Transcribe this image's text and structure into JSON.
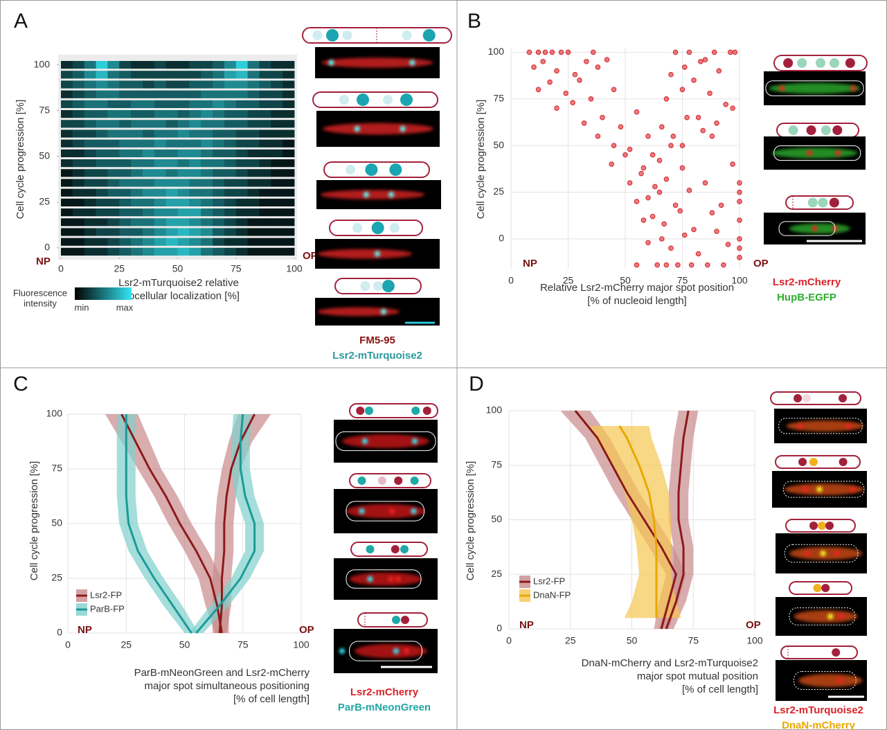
{
  "chart_data": [
    {
      "type": "heatmap",
      "panel": "A",
      "np_label": "NP",
      "op_label": "OP",
      "ylabel": "Cell cycle progression [%]",
      "xlabel": [
        "Lsr2-mTurquoise2 relative",
        "subcellular localization [%]"
      ],
      "xlim": [
        0,
        100
      ],
      "xticks": [
        0,
        25,
        50,
        75,
        100
      ],
      "ylim": [
        -5,
        102.5
      ],
      "yticks": [
        0,
        25,
        50,
        75,
        100
      ],
      "colorbar_label": [
        "Fluorescence",
        "intensity"
      ],
      "colorbar_min": "min",
      "colorbar_max": "max",
      "colors": [
        "#000000",
        "#33e6f2"
      ],
      "clim": [
        0,
        1
      ],
      "stain_labels": [
        {
          "text": "FM5-95",
          "color": "#8b1010"
        },
        {
          "text": "Lsr2-mTurquoise2",
          "color": "#2a9a9c"
        }
      ],
      "rows": [
        [
          0.2,
          0.3,
          0.5,
          0.9,
          0.6,
          0.3,
          0.2,
          0.2,
          0.3,
          0.2,
          0.2,
          0.3,
          0.3,
          0.4,
          0.6,
          0.9,
          0.5,
          0.3,
          0.2,
          0.2
        ],
        [
          0.3,
          0.4,
          0.6,
          0.8,
          0.5,
          0.4,
          0.3,
          0.3,
          0.3,
          0.3,
          0.3,
          0.3,
          0.4,
          0.5,
          0.7,
          0.8,
          0.5,
          0.3,
          0.3,
          0.2
        ],
        [
          0.3,
          0.4,
          0.5,
          0.6,
          0.5,
          0.4,
          0.4,
          0.3,
          0.4,
          0.3,
          0.3,
          0.4,
          0.4,
          0.5,
          0.6,
          0.6,
          0.5,
          0.4,
          0.3,
          0.2
        ],
        [
          0.2,
          0.3,
          0.4,
          0.5,
          0.5,
          0.4,
          0.4,
          0.4,
          0.4,
          0.4,
          0.4,
          0.4,
          0.5,
          0.5,
          0.5,
          0.5,
          0.4,
          0.3,
          0.3,
          0.2
        ],
        [
          0.3,
          0.4,
          0.5,
          0.5,
          0.4,
          0.4,
          0.5,
          0.5,
          0.4,
          0.4,
          0.4,
          0.5,
          0.5,
          0.6,
          0.5,
          0.4,
          0.4,
          0.3,
          0.3,
          0.2
        ],
        [
          0.2,
          0.3,
          0.4,
          0.4,
          0.5,
          0.5,
          0.4,
          0.4,
          0.5,
          0.5,
          0.4,
          0.5,
          0.6,
          0.5,
          0.4,
          0.4,
          0.3,
          0.3,
          0.2,
          0.2
        ],
        [
          0.3,
          0.3,
          0.4,
          0.5,
          0.5,
          0.4,
          0.5,
          0.5,
          0.5,
          0.4,
          0.5,
          0.6,
          0.5,
          0.5,
          0.4,
          0.4,
          0.3,
          0.3,
          0.2,
          0.2
        ],
        [
          0.2,
          0.3,
          0.3,
          0.4,
          0.5,
          0.5,
          0.5,
          0.4,
          0.5,
          0.5,
          0.6,
          0.5,
          0.5,
          0.4,
          0.4,
          0.3,
          0.3,
          0.2,
          0.2,
          0.2
        ],
        [
          0.2,
          0.3,
          0.4,
          0.4,
          0.4,
          0.5,
          0.5,
          0.5,
          0.6,
          0.5,
          0.5,
          0.5,
          0.6,
          0.5,
          0.4,
          0.3,
          0.3,
          0.2,
          0.2,
          0.1
        ],
        [
          0.2,
          0.2,
          0.3,
          0.4,
          0.4,
          0.5,
          0.5,
          0.6,
          0.5,
          0.5,
          0.6,
          0.6,
          0.5,
          0.4,
          0.4,
          0.3,
          0.2,
          0.2,
          0.2,
          0.1
        ],
        [
          0.2,
          0.3,
          0.3,
          0.4,
          0.4,
          0.4,
          0.5,
          0.5,
          0.6,
          0.6,
          0.5,
          0.6,
          0.5,
          0.5,
          0.4,
          0.3,
          0.3,
          0.2,
          0.1,
          0.1
        ],
        [
          0.1,
          0.2,
          0.3,
          0.3,
          0.4,
          0.4,
          0.5,
          0.6,
          0.6,
          0.5,
          0.6,
          0.6,
          0.5,
          0.4,
          0.4,
          0.3,
          0.2,
          0.2,
          0.1,
          0.1
        ],
        [
          0.1,
          0.2,
          0.3,
          0.3,
          0.4,
          0.5,
          0.5,
          0.5,
          0.6,
          0.6,
          0.6,
          0.5,
          0.5,
          0.4,
          0.3,
          0.3,
          0.2,
          0.2,
          0.1,
          0.1
        ],
        [
          0.1,
          0.2,
          0.2,
          0.3,
          0.4,
          0.4,
          0.5,
          0.6,
          0.6,
          0.7,
          0.6,
          0.5,
          0.5,
          0.4,
          0.3,
          0.3,
          0.2,
          0.1,
          0.1,
          0.1
        ],
        [
          0.1,
          0.1,
          0.2,
          0.3,
          0.3,
          0.4,
          0.5,
          0.5,
          0.6,
          0.7,
          0.7,
          0.6,
          0.5,
          0.4,
          0.3,
          0.2,
          0.2,
          0.1,
          0.1,
          0.1
        ],
        [
          0.1,
          0.2,
          0.2,
          0.3,
          0.3,
          0.4,
          0.4,
          0.5,
          0.6,
          0.6,
          0.7,
          0.7,
          0.5,
          0.4,
          0.3,
          0.2,
          0.2,
          0.1,
          0.1,
          0.1
        ],
        [
          0.1,
          0.1,
          0.2,
          0.2,
          0.3,
          0.4,
          0.5,
          0.5,
          0.6,
          0.7,
          0.7,
          0.6,
          0.5,
          0.4,
          0.3,
          0.2,
          0.1,
          0.1,
          0.1,
          0.1
        ],
        [
          0.1,
          0.1,
          0.2,
          0.3,
          0.3,
          0.4,
          0.4,
          0.5,
          0.6,
          0.7,
          0.8,
          0.7,
          0.6,
          0.4,
          0.3,
          0.2,
          0.1,
          0.1,
          0.1,
          0.1
        ],
        [
          0.1,
          0.1,
          0.2,
          0.2,
          0.3,
          0.4,
          0.5,
          0.6,
          0.7,
          0.8,
          0.7,
          0.6,
          0.5,
          0.3,
          0.2,
          0.2,
          0.1,
          0.1,
          0.1,
          0.1
        ],
        [
          0.1,
          0.1,
          0.2,
          0.2,
          0.3,
          0.4,
          0.5,
          0.6,
          0.7,
          0.7,
          0.8,
          0.7,
          0.5,
          0.4,
          0.3,
          0.2,
          0.1,
          0.1,
          0.1,
          0.1
        ]
      ]
    },
    {
      "type": "scatter",
      "panel": "B",
      "np_label": "NP",
      "op_label": "OP",
      "ylabel": "Cell cycle progression [%]",
      "xlabel": [
        "Relative Lsr2-mCherry major spot position",
        "[% of nucleoid length]"
      ],
      "xlim": [
        0,
        100
      ],
      "xticks": [
        0,
        25,
        50,
        75,
        100
      ],
      "ylim": [
        -16,
        102
      ],
      "yticks": [
        0,
        25,
        50,
        75,
        100
      ],
      "grid": true,
      "color": "#d9232a",
      "stain_labels": [
        {
          "text": "Lsr2-mCherry",
          "color": "#d9232a"
        },
        {
          "text": "HupB-EGFP",
          "color": "#2fae2f"
        }
      ],
      "x": [
        8,
        12,
        15,
        18,
        22,
        25,
        10,
        14,
        20,
        28,
        33,
        36,
        12,
        17,
        24,
        30,
        38,
        42,
        20,
        27,
        35,
        45,
        32,
        40,
        48,
        55,
        38,
        45,
        52,
        60,
        44,
        50,
        58,
        65,
        70,
        52,
        57,
        63,
        68,
        75,
        55,
        60,
        65,
        72,
        78,
        85,
        58,
        62,
        67,
        74,
        80,
        88,
        92,
        60,
        66,
        70,
        76,
        82,
        90,
        95,
        64,
        68,
        73,
        79,
        86,
        93,
        66,
        71,
        77,
        84,
        90,
        97,
        68,
        75,
        80,
        87,
        94,
        70,
        76,
        83,
        89,
        96,
        72,
        78,
        85,
        91,
        98,
        100,
        100,
        100,
        100,
        100,
        100,
        100,
        55,
        62,
        75,
        82,
        88,
        97
      ],
      "values": [
        100,
        100,
        100,
        100,
        100,
        100,
        92,
        95,
        90,
        88,
        95,
        100,
        80,
        84,
        78,
        85,
        92,
        96,
        70,
        73,
        75,
        80,
        62,
        65,
        60,
        68,
        55,
        50,
        48,
        55,
        40,
        45,
        38,
        42,
        50,
        30,
        35,
        28,
        32,
        38,
        20,
        22,
        25,
        18,
        26,
        30,
        10,
        12,
        8,
        15,
        5,
        14,
        18,
        -2,
        0,
        -5,
        2,
        -8,
        4,
        -3,
        -14,
        -14,
        -14,
        -14,
        -14,
        -14,
        60,
        55,
        65,
        58,
        62,
        70,
        75,
        80,
        85,
        78,
        72,
        88,
        92,
        95,
        100,
        100,
        100,
        100,
        96,
        90,
        100,
        20,
        10,
        0,
        -5,
        -10,
        25,
        30,
        -14,
        45,
        50,
        65,
        55,
        40
      ]
    },
    {
      "type": "line",
      "panel": "C",
      "np_label": "NP",
      "op_label": "OP",
      "ylabel": "Cell cycle progression [%]",
      "xlabel": [
        "ParB-mNeonGreen and Lsr2-mCherry",
        "major spot simultaneous positioning",
        "[% of cell length]"
      ],
      "xlim": [
        0,
        100
      ],
      "xticks": [
        0,
        25,
        50,
        75,
        100
      ],
      "ylim": [
        0,
        100
      ],
      "yticks": [
        0,
        25,
        50,
        75,
        100
      ],
      "grid": true,
      "legend": "lower left",
      "stain_labels": [
        {
          "text": "Lsr2-mCherry",
          "color": "#d9232a"
        },
        {
          "text": "ParB-mNeonGreen",
          "color": "#1fa8a6"
        }
      ],
      "series": [
        {
          "name": "Lsr2-FP",
          "color": "#8b1a1a",
          "band_color": "#c98a8c",
          "branches": [
            {
              "y": [
                0,
                12.5,
                25,
                37.5,
                50,
                62.5,
                75,
                87.5,
                100
              ],
              "values": [
                66,
                64,
                61,
                55,
                48,
                42,
                35,
                29,
                23
              ],
              "lower": [
                63,
                59,
                56,
                50,
                43,
                37,
                30,
                23,
                16
              ],
              "upper": [
                69,
                69,
                66,
                60,
                53,
                47,
                40,
                35,
                30
              ]
            },
            {
              "y": [
                0,
                12.5,
                25,
                37.5,
                50,
                62.5,
                75,
                87.5,
                100
              ],
              "values": [
                65,
                66,
                66,
                67,
                67,
                68,
                70,
                74,
                80
              ],
              "lower": [
                62,
                62,
                62,
                63,
                63,
                64,
                66,
                69,
                73
              ],
              "upper": [
                68,
                70,
                70,
                71,
                71,
                72,
                74,
                79,
                87
              ]
            }
          ]
        },
        {
          "name": "ParB-FP",
          "color": "#1b9a9a",
          "band_color": "#7fd0cc",
          "branches": [
            {
              "y": [
                0,
                12.5,
                25,
                37.5,
                50,
                62.5,
                75,
                87.5,
                100
              ],
              "values": [
                53,
                45,
                37,
                30,
                26,
                25,
                25,
                25,
                25
              ],
              "lower": [
                50,
                41,
                33,
                26,
                22,
                21,
                21,
                21,
                21
              ],
              "upper": [
                56,
                49,
                41,
                34,
                30,
                29,
                29,
                29,
                29
              ]
            },
            {
              "y": [
                0,
                12.5,
                25,
                37.5,
                50,
                62.5,
                75,
                87.5,
                100
              ],
              "values": [
                55,
                65,
                74,
                80,
                80,
                76,
                74,
                74,
                75
              ],
              "lower": [
                52,
                61,
                70,
                76,
                76,
                72,
                70,
                70,
                71
              ],
              "upper": [
                58,
                69,
                78,
                84,
                84,
                80,
                78,
                78,
                79
              ]
            }
          ]
        }
      ]
    },
    {
      "type": "line",
      "panel": "D",
      "np_label": "NP",
      "op_label": "OP",
      "ylabel": "Cell cycle progression [%]",
      "xlabel": [
        "DnaN-mCherry and Lsr2-mTurquoise2",
        "major spot mutual position",
        "[% of cell length]"
      ],
      "xlim": [
        0,
        100
      ],
      "xticks": [
        0,
        25,
        50,
        75,
        100
      ],
      "ylim": [
        0,
        100
      ],
      "yticks": [
        0,
        25,
        50,
        75,
        100
      ],
      "grid": true,
      "legend": "lower left",
      "stain_labels": [
        {
          "text": "Lsr2-mTurquoise2",
          "color": "#d9232a"
        },
        {
          "text": "DnaN-mCherry",
          "color": "#e8a800"
        }
      ],
      "series": [
        {
          "name": "Lsr2-FP",
          "color": "#8b1a1a",
          "band_color": "#c98a8c",
          "branches": [
            {
              "y": [
                0,
                12.5,
                25,
                37.5,
                50,
                62.5,
                75,
                87.5,
                100
              ],
              "values": [
                62,
                65,
                68,
                62,
                55,
                48,
                42,
                36,
                27
              ],
              "lower": [
                59,
                61,
                64,
                57,
                50,
                43,
                37,
                31,
                21
              ],
              "upper": [
                65,
                69,
                72,
                67,
                60,
                53,
                47,
                41,
                33
              ]
            },
            {
              "y": [
                0,
                12.5,
                25,
                37.5,
                50,
                62.5,
                75,
                87.5,
                100
              ],
              "values": [
                64,
                68,
                71,
                71,
                69,
                69,
                70,
                71,
                73
              ],
              "lower": [
                61,
                64,
                67,
                67,
                65,
                65,
                66,
                67,
                69
              ],
              "upper": [
                67,
                72,
                75,
                75,
                73,
                73,
                74,
                75,
                77
              ]
            }
          ]
        },
        {
          "name": "DnaN-FP",
          "color": "#e8a800",
          "band_color": "#f5c651",
          "branches": [
            {
              "y": [
                5,
                12.5,
                25,
                37.5,
                50,
                62.5,
                75,
                87.5,
                93
              ],
              "values": [
                60,
                60,
                60,
                60,
                59,
                57,
                53,
                48,
                45
              ],
              "lower": [
                47,
                50,
                53,
                52,
                50,
                47,
                42,
                35,
                32
              ],
              "upper": [
                70,
                68,
                66,
                66,
                66,
                65,
                62,
                58,
                57
              ]
            }
          ]
        }
      ]
    }
  ]
}
